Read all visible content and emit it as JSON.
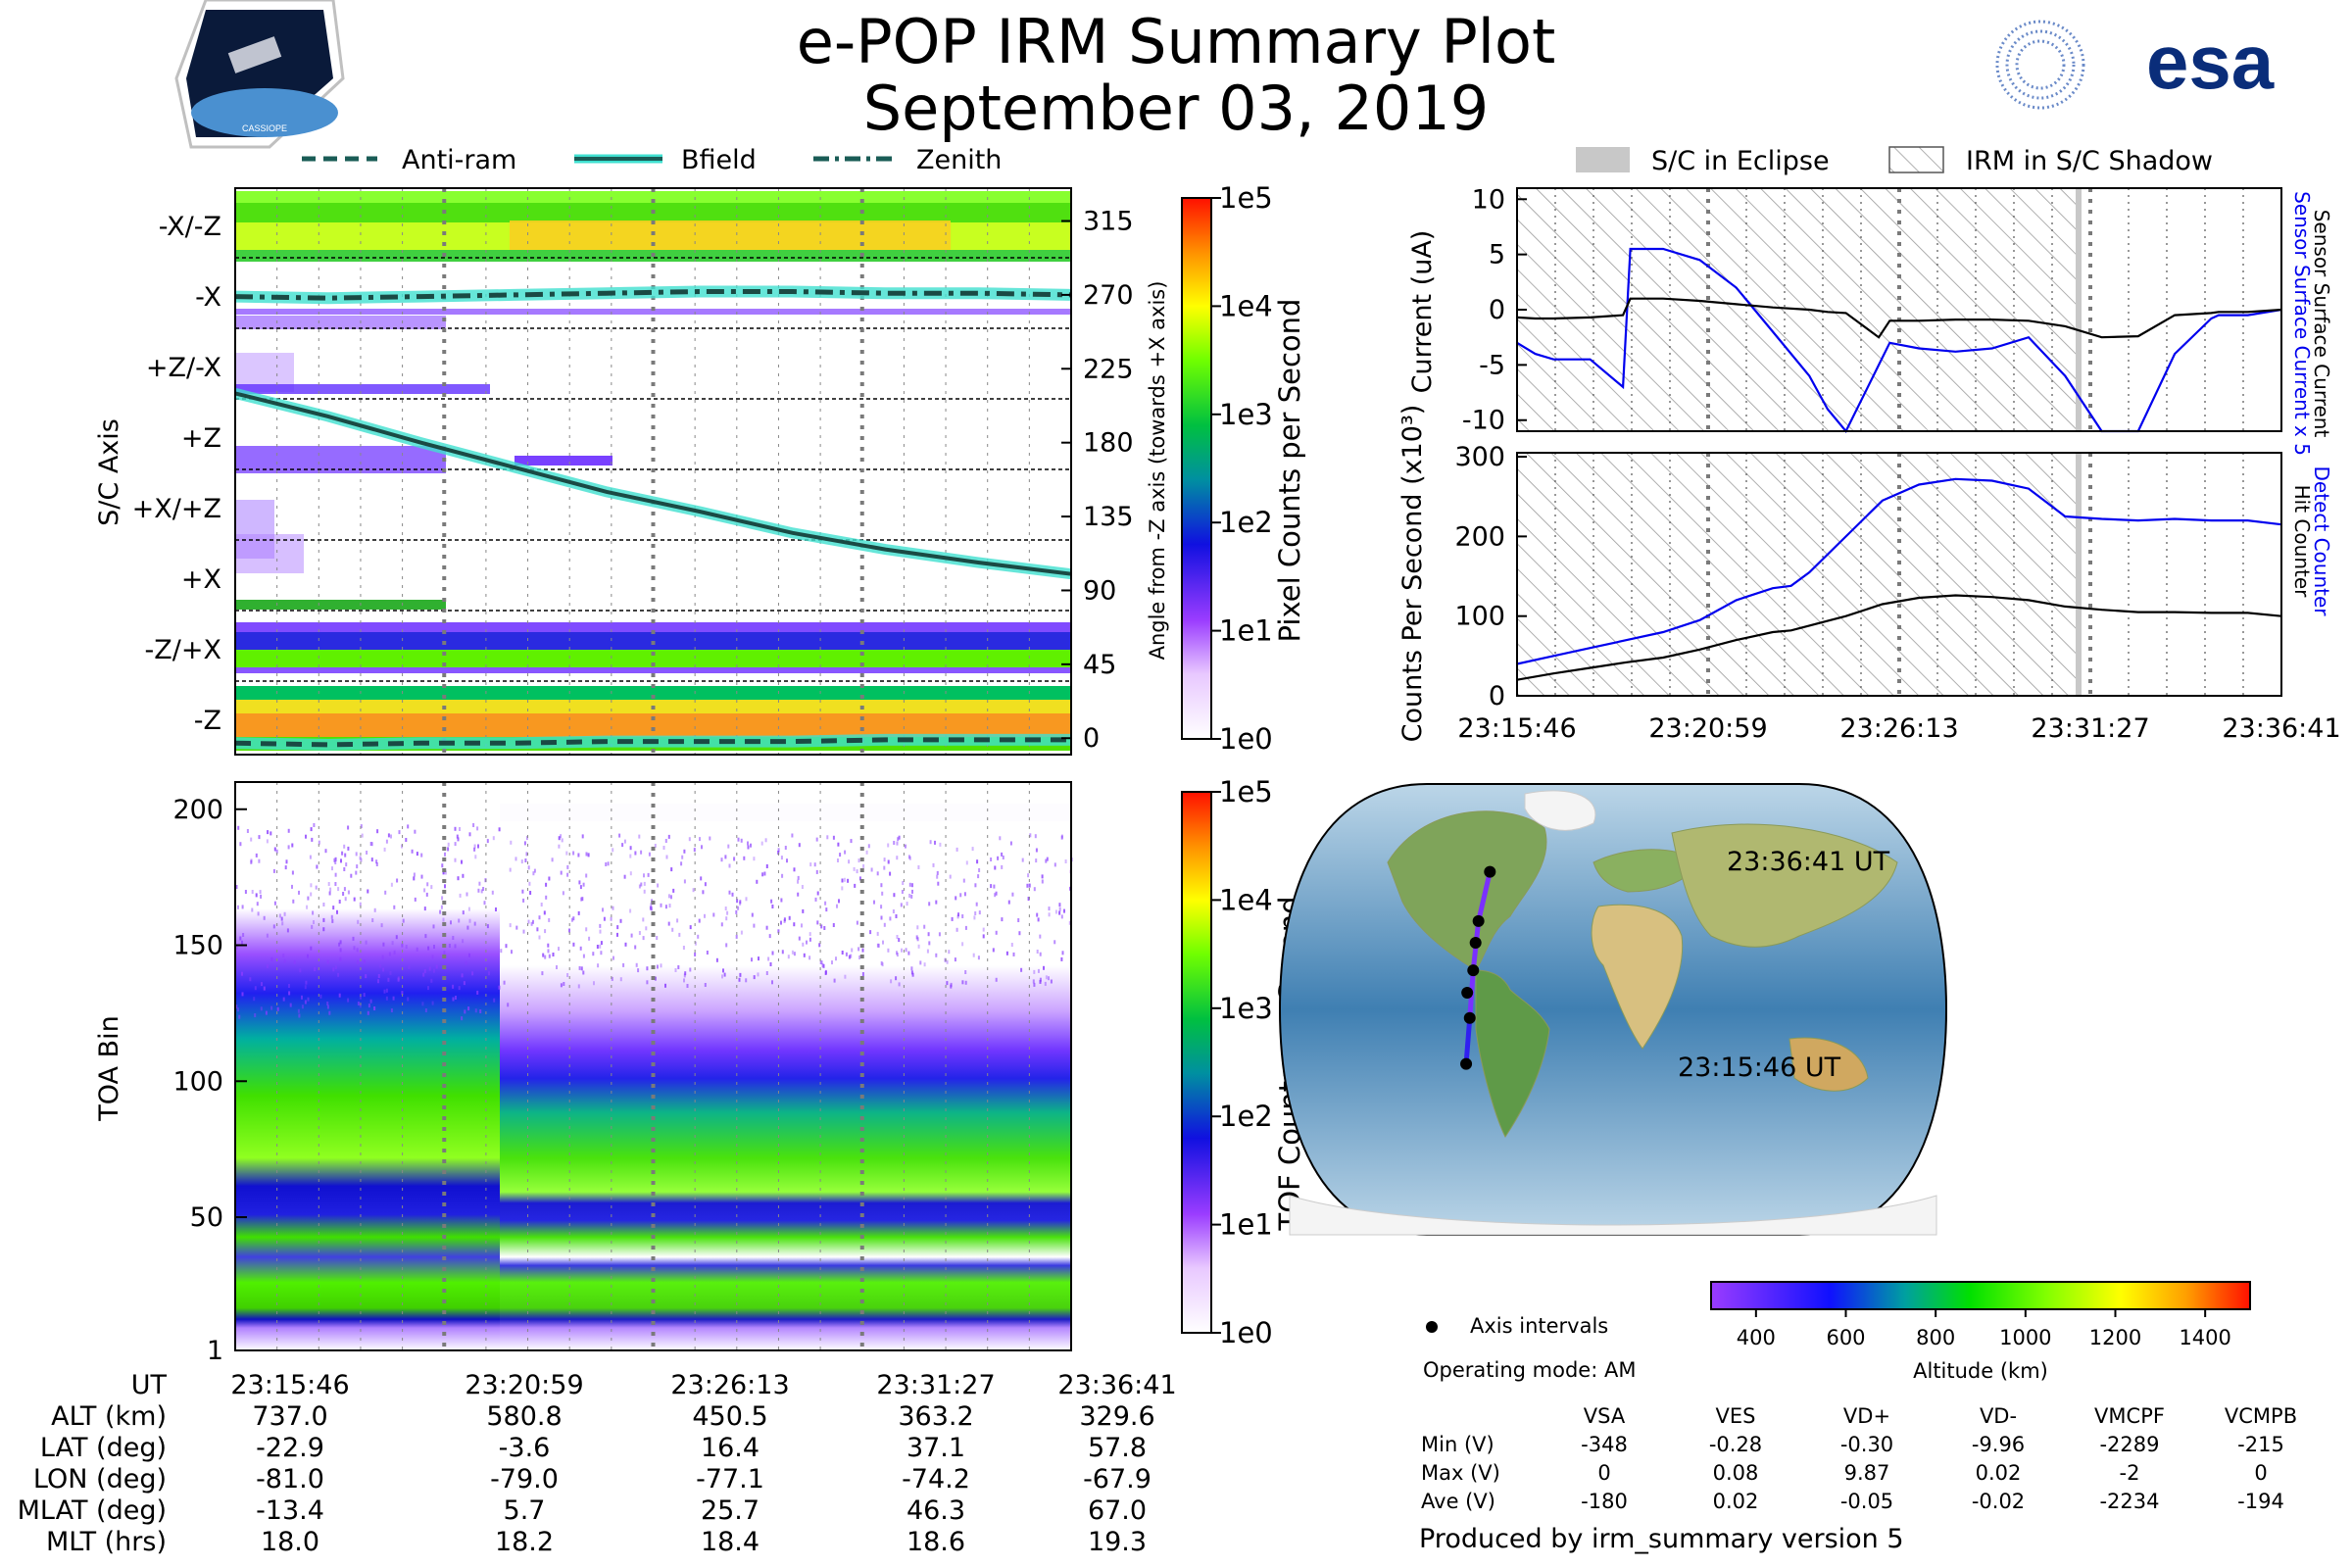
{
  "header": {
    "title_line1": "e-POP IRM Summary Plot",
    "title_line2": "September 03, 2019",
    "left_logo_text": "CASSIOPE",
    "right_logo_text": "esa"
  },
  "colors": {
    "current_blue": "#0000ee",
    "bfield_line": "#1a5c56",
    "bfield_glow": "#40e0d0",
    "eclipse_gray": "#c8c8c8"
  },
  "legend_top": {
    "items": [
      {
        "label": "Anti-ram",
        "style": "dashed"
      },
      {
        "label": "Bfield",
        "style": "solid"
      },
      {
        "label": "Zenith",
        "style": "dashdot"
      }
    ]
  },
  "legend_right": {
    "items": [
      {
        "label": "S/C in Eclipse",
        "style": "gray-fill"
      },
      {
        "label": "IRM in S/C Shadow",
        "style": "hatch"
      }
    ]
  },
  "time_ticks": [
    "23:15:46",
    "23:20:59",
    "23:26:13",
    "23:31:27",
    "23:36:41"
  ],
  "chart_data": [
    {
      "id": "sc-axis-panel",
      "type": "heatmap",
      "ylabel": "S/C Axis",
      "y_categories": [
        "-X/-Z",
        "-X",
        "+Z/-X",
        "+Z",
        "+X/+Z",
        "+X",
        "-Z/+X",
        "-Z"
      ],
      "right_axis_label": "Angle from -Z axis (towards +X axis)",
      "right_ticks": [
        315,
        270,
        225,
        180,
        135,
        90,
        45,
        0
      ],
      "right_range": [
        -10,
        335
      ],
      "colorbar_label": "Pixel Counts per Second",
      "colorbar_ticks": [
        "1e5",
        "1e4",
        "1e3",
        "1e2",
        "1e1",
        "1e0"
      ],
      "x_range_minutes": [
        0,
        20.92
      ],
      "series": [
        {
          "name": "Bfield",
          "angle_deg": [
            210,
            196,
            180,
            165,
            150,
            138,
            125,
            115,
            107,
            100
          ]
        },
        {
          "name": "Zenith",
          "angle_deg": [
            269,
            268,
            269,
            270,
            271,
            272,
            272,
            271,
            271,
            270
          ]
        },
        {
          "name": "Anti-ram",
          "angle_deg": [
            -3,
            -4,
            -3,
            -3,
            -2,
            -2,
            -2,
            -1,
            -1,
            -1
          ]
        }
      ]
    },
    {
      "id": "toa-panel",
      "type": "heatmap",
      "ylabel": "TOA Bin",
      "y_ticks": [
        1,
        50,
        100,
        150,
        200
      ],
      "ylim": [
        1,
        210
      ],
      "colorbar_label": "TOF Counts per Second",
      "colorbar_ticks": [
        "1e5",
        "1e4",
        "1e3",
        "1e2",
        "1e1",
        "1e0"
      ]
    },
    {
      "id": "current-panel",
      "type": "line",
      "ylabel": "Current (uA)",
      "y_ticks": [
        10,
        5,
        0,
        -5,
        -10
      ],
      "ylim": [
        -11,
        11
      ],
      "right_label_1": "Sensor Surface Current x 5",
      "right_label_2": "Sensor Surface Current",
      "x_minutes": [
        0,
        0.5,
        1,
        2,
        2.9,
        3.1,
        3.3,
        4,
        5,
        6,
        7,
        8,
        8.5,
        9,
        9.9,
        10.2,
        11,
        12,
        13,
        14,
        15,
        16,
        17,
        18,
        19,
        19.2,
        20,
        20.92
      ],
      "series": [
        {
          "name": "Sensor Surface Current x 5",
          "color": "blue",
          "values": [
            -3,
            -4,
            -4.5,
            -4.5,
            -7,
            5.5,
            5.5,
            5.5,
            4.5,
            2,
            -2,
            -6,
            -9,
            -11,
            -5,
            -3,
            -3.5,
            -3.8,
            -3.5,
            -2.5,
            -6,
            -11,
            -11,
            -4,
            -0.8,
            -0.5,
            -0.5,
            0
          ]
        },
        {
          "name": "Sensor Surface Current",
          "color": "black",
          "values": [
            -0.7,
            -0.8,
            -0.8,
            -0.7,
            -0.5,
            1,
            1,
            1,
            0.8,
            0.5,
            0.2,
            0,
            -0.2,
            -0.3,
            -2.5,
            -1,
            -1,
            -0.9,
            -0.9,
            -1,
            -1.5,
            -2.5,
            -2.4,
            -0.5,
            -0.3,
            -0.2,
            -0.2,
            0
          ]
        }
      ]
    },
    {
      "id": "counts-panel",
      "type": "line",
      "ylabel": "Counts Per Second (x10³)",
      "y_ticks": [
        300,
        200,
        100,
        0
      ],
      "ylim": [
        0,
        305
      ],
      "right_label_1": "Detect Counter",
      "right_label_2": "Hit Counter",
      "x_minutes": [
        0,
        1,
        2,
        3,
        4,
        5,
        6,
        7,
        7.5,
        8,
        9,
        10,
        11,
        12,
        13,
        14,
        15,
        16,
        17,
        18,
        19,
        20,
        20.92
      ],
      "series": [
        {
          "name": "Detect Counter",
          "color": "blue",
          "values": [
            40,
            50,
            60,
            70,
            80,
            95,
            120,
            135,
            138,
            155,
            200,
            245,
            265,
            272,
            270,
            260,
            225,
            222,
            220,
            222,
            220,
            220,
            215
          ]
        },
        {
          "name": "Hit Counter",
          "color": "black",
          "values": [
            20,
            28,
            35,
            42,
            48,
            58,
            70,
            80,
            82,
            88,
            100,
            115,
            123,
            126,
            124,
            120,
            112,
            108,
            105,
            105,
            104,
            104,
            100
          ]
        }
      ]
    },
    {
      "id": "map-panel",
      "type": "scatter",
      "projection": "Robinson",
      "start_label": "23:15:46 UT",
      "end_label": "23:36:41 UT",
      "track_lon": [
        -81.0,
        -79.0,
        -77.1,
        -74.2,
        -67.9
      ],
      "track_lat": [
        -22.9,
        -3.6,
        16.4,
        37.1,
        57.8
      ],
      "track_alt_km": [
        737.0,
        580.8,
        450.5,
        363.2,
        329.6
      ],
      "legend_dot": "Axis intervals",
      "operating_mode": "Operating mode: AM",
      "colorbar_label": "Altitude (km)",
      "colorbar_ticks": [
        400,
        600,
        800,
        1000,
        1200,
        1400
      ],
      "colorbar_range": [
        300,
        1500
      ]
    }
  ],
  "bottom_table": {
    "rows": [
      {
        "label": "UT",
        "values": [
          "23:15:46",
          "23:20:59",
          "23:26:13",
          "23:31:27",
          "23:36:41"
        ]
      },
      {
        "label": "ALT (km)",
        "values": [
          "737.0",
          "580.8",
          "450.5",
          "363.2",
          "329.6"
        ]
      },
      {
        "label": "LAT (deg)",
        "values": [
          "-22.9",
          "-3.6",
          "16.4",
          "37.1",
          "57.8"
        ]
      },
      {
        "label": "LON (deg)",
        "values": [
          "-81.0",
          "-79.0",
          "-77.1",
          "-74.2",
          "-67.9"
        ]
      },
      {
        "label": "MLAT (deg)",
        "values": [
          "-13.4",
          "5.7",
          "25.7",
          "46.3",
          "67.0"
        ]
      },
      {
        "label": "MLT (hrs)",
        "values": [
          "18.0",
          "18.2",
          "18.4",
          "18.6",
          "19.3"
        ]
      }
    ]
  },
  "stats_table": {
    "headers": [
      "VSA",
      "VES",
      "VD+",
      "VD-",
      "VMCPF",
      "VCMPB"
    ],
    "rows": [
      {
        "label": "Min (V)",
        "values": [
          "-348",
          "-0.28",
          "-0.30",
          "-9.96",
          "-2289",
          "-215"
        ]
      },
      {
        "label": "Max (V)",
        "values": [
          "0",
          "0.08",
          "9.87",
          "0.02",
          "-2",
          "0"
        ]
      },
      {
        "label": "Ave (V)",
        "values": [
          "-180",
          "0.02",
          "-0.05",
          "-0.02",
          "-2234",
          "-194"
        ]
      }
    ]
  },
  "footer": {
    "produced_by": "Produced by irm_summary version 5"
  }
}
